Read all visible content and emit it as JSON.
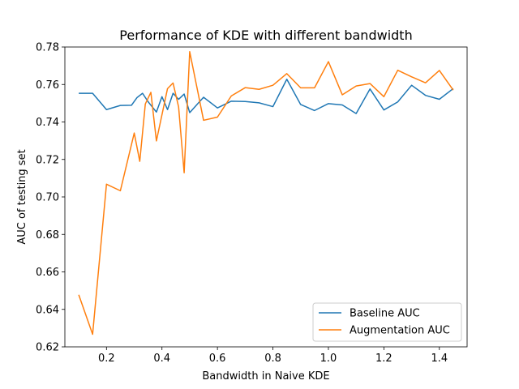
{
  "chart_data": {
    "type": "line",
    "title": "Performance of KDE with different bandwidth",
    "xlabel": "Bandwidth in Naive KDE",
    "ylabel": "AUC of testing set",
    "xlim": [
      0.05,
      1.5
    ],
    "ylim": [
      0.62,
      0.78
    ],
    "x_ticks": [
      0.2,
      0.4,
      0.6,
      0.8,
      1.0,
      1.2,
      1.4
    ],
    "x_tick_labels": [
      "0.2",
      "0.4",
      "0.6",
      "0.8",
      "1.0",
      "1.2",
      "1.4"
    ],
    "y_ticks": [
      0.62,
      0.64,
      0.66,
      0.68,
      0.7,
      0.72,
      0.74,
      0.76,
      0.78
    ],
    "y_tick_labels": [
      "0.62",
      "0.64",
      "0.66",
      "0.68",
      "0.70",
      "0.72",
      "0.74",
      "0.76",
      "0.78"
    ],
    "grid": false,
    "legend_position": "lower-right",
    "series": [
      {
        "name": "Baseline AUC",
        "color": "#1f77b4",
        "points": [
          [
            0.1,
            0.7553
          ],
          [
            0.15,
            0.7553
          ],
          [
            0.2,
            0.7466
          ],
          [
            0.25,
            0.7488
          ],
          [
            0.29,
            0.7489
          ],
          [
            0.31,
            0.753
          ],
          [
            0.33,
            0.7553
          ],
          [
            0.35,
            0.7508
          ],
          [
            0.38,
            0.7453
          ],
          [
            0.4,
            0.7535
          ],
          [
            0.42,
            0.7466
          ],
          [
            0.44,
            0.7553
          ],
          [
            0.46,
            0.7521
          ],
          [
            0.48,
            0.7549
          ],
          [
            0.5,
            0.745
          ],
          [
            0.55,
            0.7532
          ],
          [
            0.6,
            0.7475
          ],
          [
            0.65,
            0.7511
          ],
          [
            0.7,
            0.7509
          ],
          [
            0.75,
            0.7502
          ],
          [
            0.8,
            0.7482
          ],
          [
            0.85,
            0.7628
          ],
          [
            0.9,
            0.7493
          ],
          [
            0.95,
            0.7461
          ],
          [
            1.0,
            0.7498
          ],
          [
            1.05,
            0.7491
          ],
          [
            1.1,
            0.7445
          ],
          [
            1.15,
            0.7576
          ],
          [
            1.2,
            0.7464
          ],
          [
            1.25,
            0.7507
          ],
          [
            1.3,
            0.7596
          ],
          [
            1.35,
            0.7542
          ],
          [
            1.4,
            0.7521
          ],
          [
            1.45,
            0.7578
          ]
        ]
      },
      {
        "name": "Augmentation AUC",
        "color": "#ff7f0e",
        "points": [
          [
            0.1,
            0.6478
          ],
          [
            0.15,
            0.6267
          ],
          [
            0.2,
            0.7068
          ],
          [
            0.25,
            0.7033
          ],
          [
            0.3,
            0.7341
          ],
          [
            0.32,
            0.719
          ],
          [
            0.34,
            0.7496
          ],
          [
            0.36,
            0.7558
          ],
          [
            0.38,
            0.7299
          ],
          [
            0.42,
            0.7578
          ],
          [
            0.44,
            0.7608
          ],
          [
            0.46,
            0.748
          ],
          [
            0.48,
            0.7129
          ],
          [
            0.5,
            0.7775
          ],
          [
            0.55,
            0.7409
          ],
          [
            0.6,
            0.7426
          ],
          [
            0.65,
            0.7539
          ],
          [
            0.7,
            0.7583
          ],
          [
            0.75,
            0.7574
          ],
          [
            0.8,
            0.7596
          ],
          [
            0.85,
            0.7658
          ],
          [
            0.9,
            0.7582
          ],
          [
            0.95,
            0.7582
          ],
          [
            1.0,
            0.7722
          ],
          [
            1.05,
            0.7545
          ],
          [
            1.1,
            0.7592
          ],
          [
            1.15,
            0.7605
          ],
          [
            1.2,
            0.7535
          ],
          [
            1.25,
            0.7676
          ],
          [
            1.3,
            0.7641
          ],
          [
            1.35,
            0.7609
          ],
          [
            1.4,
            0.7675
          ],
          [
            1.45,
            0.757
          ]
        ]
      }
    ]
  }
}
